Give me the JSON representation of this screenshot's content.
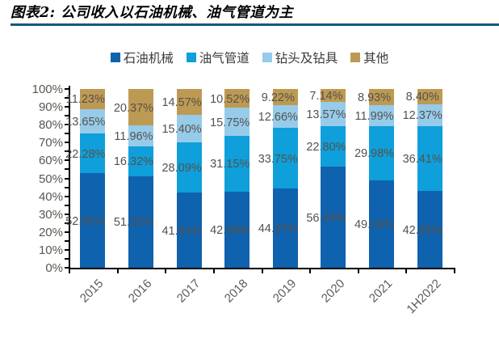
{
  "header": {
    "title": "图表2: 公司收入以石油机械、油气管道为主",
    "underline_color": "#14587C"
  },
  "chart_data": {
    "type": "bar",
    "subtype": "stacked-column-100pct",
    "title": "公司收入以石油机械、油气管道为主",
    "categories": [
      "2015",
      "2016",
      "2017",
      "2018",
      "2019",
      "2020",
      "2021",
      "1H2022"
    ],
    "series": [
      {
        "name": "石油机械",
        "color": "#0E62AE",
        "values": [
          52.85,
          51.35,
          41.94,
          42.58,
          44.37,
          56.49,
          49.09,
          42.82
        ]
      },
      {
        "name": "油气管道",
        "color": "#0F9FDA",
        "values": [
          22.28,
          16.32,
          28.09,
          31.15,
          33.75,
          22.8,
          29.98,
          36.41
        ]
      },
      {
        "name": "钻头及钻具",
        "color": "#96CBEA",
        "values": [
          13.65,
          11.96,
          15.4,
          15.75,
          12.66,
          13.57,
          11.99,
          12.37
        ]
      },
      {
        "name": "其他",
        "color": "#BD9A53",
        "values": [
          11.23,
          20.37,
          14.57,
          10.52,
          9.22,
          7.14,
          8.93,
          8.4
        ]
      }
    ],
    "xlabel": "",
    "ylabel": "",
    "y_axis": {
      "min": 0,
      "max": 100,
      "major_step": 10,
      "minor_step": 5,
      "tick_suffix": "%"
    },
    "data_label_format": "0.00%",
    "legend_position": "top",
    "grid": false,
    "axis_color": "#000000",
    "tick_label_color": "#5a5a5a",
    "data_label_color": "#57514b"
  }
}
